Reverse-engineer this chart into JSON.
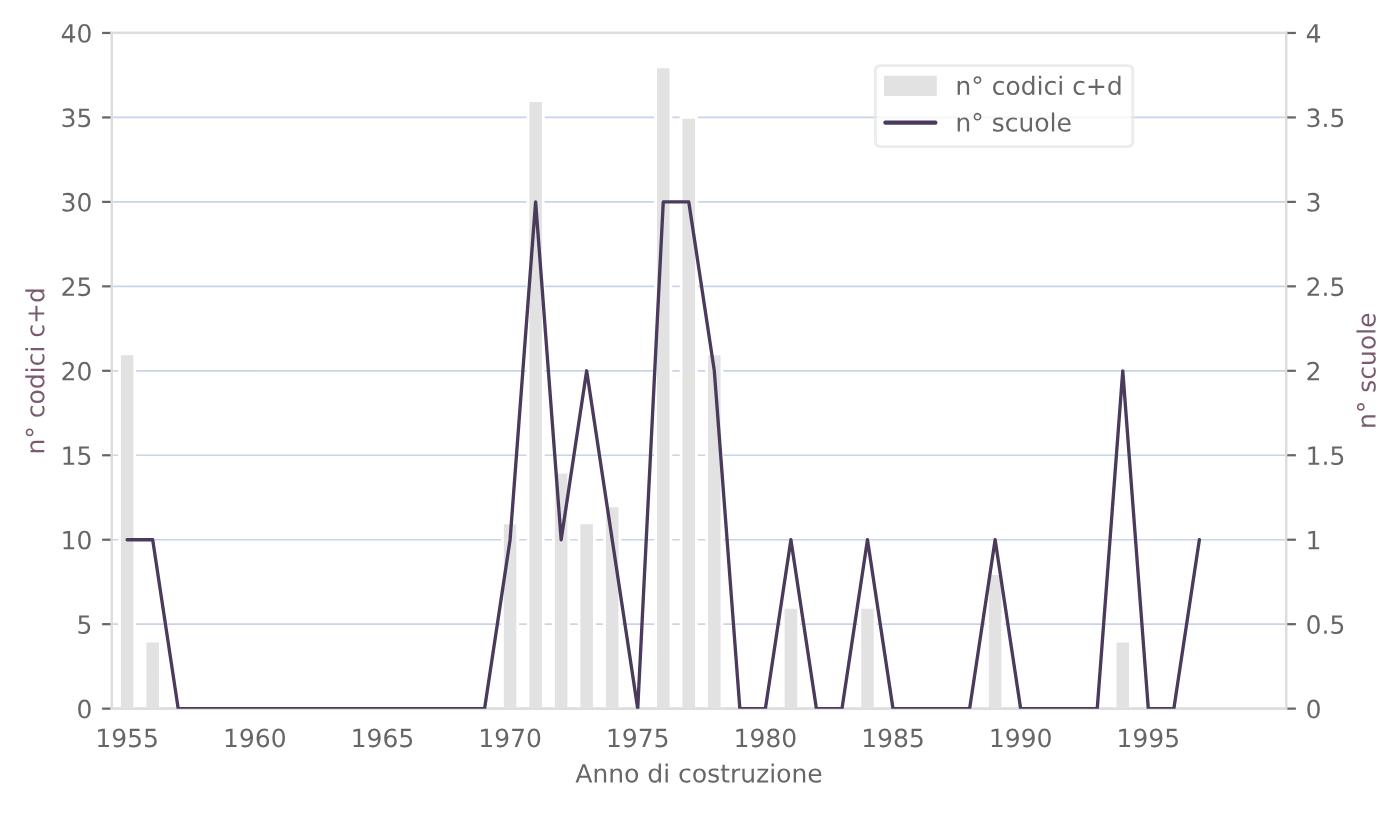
{
  "chart_data": {
    "type": "bar",
    "xlabel": "Anno di costruzione",
    "ylabel": "n° codici c+d",
    "y2label": "n° scuole",
    "x": [
      1955,
      1956,
      1957,
      1958,
      1959,
      1960,
      1961,
      1962,
      1963,
      1964,
      1965,
      1966,
      1967,
      1968,
      1969,
      1970,
      1971,
      1972,
      1973,
      1974,
      1975,
      1976,
      1977,
      1978,
      1979,
      1980,
      1981,
      1982,
      1983,
      1984,
      1985,
      1986,
      1987,
      1988,
      1989,
      1990,
      1991,
      1992,
      1993,
      1994,
      1995,
      1996,
      1997
    ],
    "series": [
      {
        "name": "n° codici c+d",
        "color": "#e2e2e2",
        "values": [
          21,
          4,
          null,
          null,
          null,
          null,
          null,
          null,
          null,
          null,
          null,
          null,
          null,
          null,
          null,
          11,
          36,
          14,
          11,
          12,
          null,
          38,
          35,
          21,
          null,
          null,
          6,
          null,
          null,
          6,
          null,
          null,
          null,
          null,
          8,
          null,
          null,
          null,
          null,
          4,
          null,
          null,
          null
        ]
      },
      {
        "name": "n° scuole",
        "type": "line",
        "axis": "y2",
        "color": "#4a3a5c",
        "values": [
          1,
          1,
          0,
          0,
          0,
          0,
          0,
          0,
          0,
          0,
          0,
          0,
          0,
          0,
          0,
          1,
          3,
          1,
          2,
          1,
          0,
          3,
          3,
          2,
          0,
          0,
          1,
          0,
          0,
          1,
          0,
          0,
          0,
          0,
          1,
          0,
          0,
          0,
          0,
          2,
          0,
          0,
          1
        ]
      }
    ],
    "xlim": [
      1954.4,
      2000.4
    ],
    "xticks": [
      1955,
      1960,
      1965,
      1970,
      1975,
      1980,
      1985,
      1990,
      1995
    ],
    "ylim": [
      0,
      40
    ],
    "yticks": [
      0,
      5,
      10,
      15,
      20,
      25,
      30,
      35,
      40
    ],
    "y2lim": [
      0,
      4
    ],
    "y2ticks": [
      0,
      0.5,
      1,
      1.5,
      2,
      2.5,
      3,
      3.5,
      4
    ],
    "grid": "y",
    "legend": "top right"
  }
}
